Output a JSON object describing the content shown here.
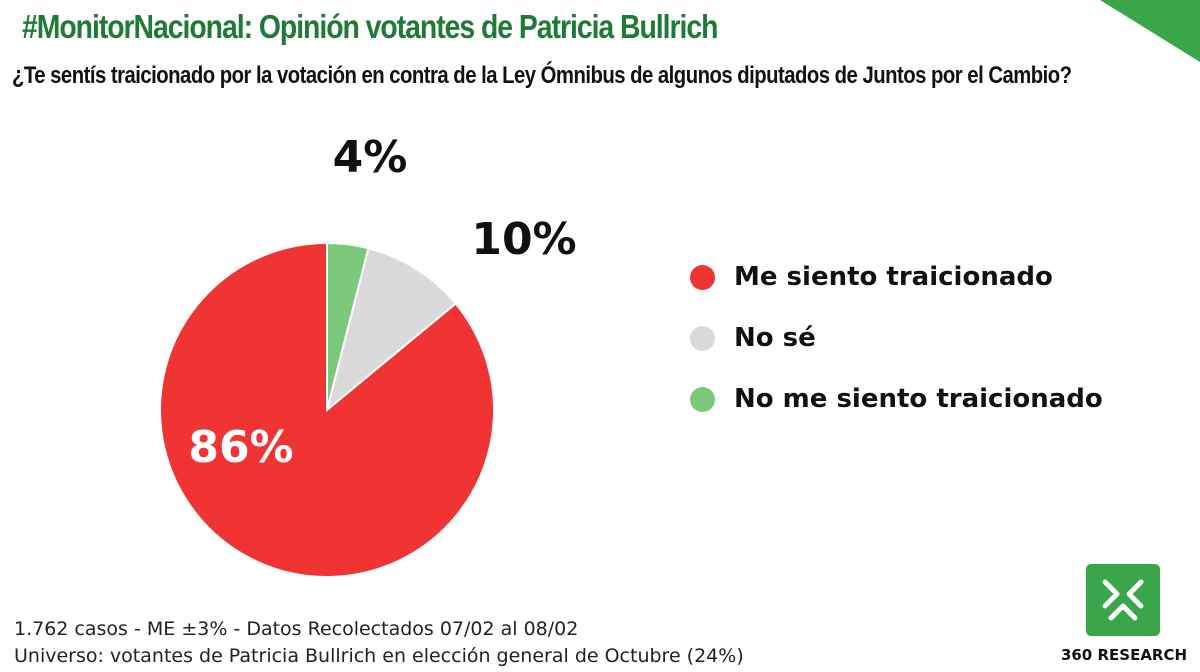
{
  "header": {
    "title": "#MonitorNacional: Opinión votantes de Patricia Bullrich",
    "question": "¿Te sentís traicionado por la votación en contra de la Ley Ómnibus de algunos diputados de Juntos por el Cambio?"
  },
  "colors": {
    "title": "#1e7a35",
    "corner": "#3aa64a",
    "logo": "#3aa64a"
  },
  "chart_data": {
    "type": "pie",
    "title": "¿Te sentís traicionado por la votación en contra de la Ley Ómnibus de algunos diputados de Juntos por el Cambio?",
    "start": "top",
    "direction": "clockwise",
    "legend_position": "right",
    "slices": [
      {
        "name": "No me siento traicionado",
        "value": 4,
        "label": "4%",
        "color": "#7cc97b"
      },
      {
        "name": "No sé",
        "value": 10,
        "label": "10%",
        "color": "#dadada"
      },
      {
        "name": "Me siento traicionado",
        "value": 86,
        "label": "86%",
        "color": "#f03434"
      }
    ],
    "legend": [
      {
        "name": "Me siento traicionado",
        "color": "#f03434"
      },
      {
        "name": "No sé",
        "color": "#dadada"
      },
      {
        "name": "No me siento traicionado",
        "color": "#7cc97b"
      }
    ]
  },
  "footer": {
    "line1": "1.762 casos - ME ±3% - Datos Recolectados 07/02 al 08/02",
    "line2": "Universo: votantes de Patricia Bullrich en elección general de Octubre (24%)"
  },
  "logo": {
    "name": "360 RESEARCH",
    "icon": "360-research-logo-icon"
  }
}
